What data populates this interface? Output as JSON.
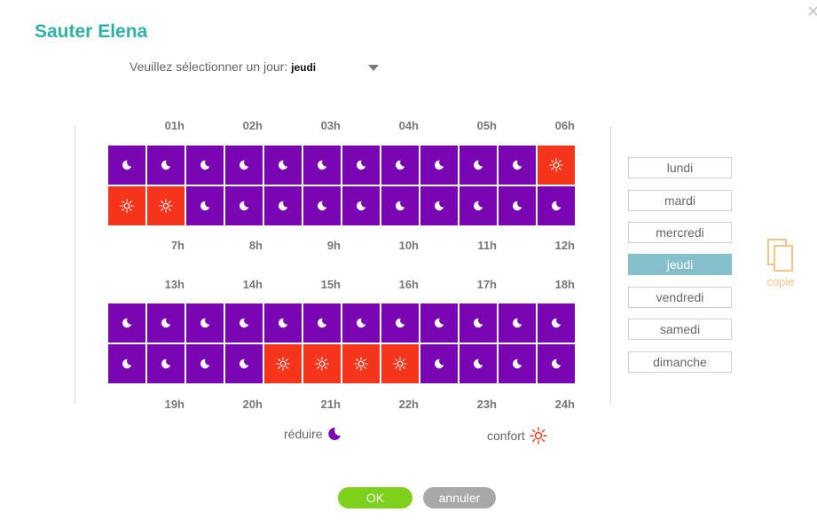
{
  "dialog": {
    "title": "Sauter Elena"
  },
  "day_select": {
    "label": "Veuillez sélectionner un jour:",
    "value": "jeudi"
  },
  "hour_labels": {
    "top1": [
      "01h",
      "02h",
      "03h",
      "04h",
      "05h",
      "06h"
    ],
    "bottom1": [
      "7h",
      "8h",
      "9h",
      "10h",
      "11h",
      "12h"
    ],
    "top2": [
      "13h",
      "14h",
      "15h",
      "16h",
      "17h",
      "18h"
    ],
    "bottom2": [
      "19h",
      "20h",
      "21h",
      "22h",
      "23h",
      "24h"
    ]
  },
  "schedule": {
    "block1": [
      [
        "reduce",
        "reduce",
        "reduce",
        "reduce",
        "reduce",
        "reduce",
        "reduce",
        "reduce",
        "reduce",
        "reduce",
        "reduce",
        "comfort"
      ],
      [
        "comfort",
        "comfort",
        "reduce",
        "reduce",
        "reduce",
        "reduce",
        "reduce",
        "reduce",
        "reduce",
        "reduce",
        "reduce",
        "reduce"
      ]
    ],
    "block2": [
      [
        "reduce",
        "reduce",
        "reduce",
        "reduce",
        "reduce",
        "reduce",
        "reduce",
        "reduce",
        "reduce",
        "reduce",
        "reduce",
        "reduce"
      ],
      [
        "reduce",
        "reduce",
        "reduce",
        "reduce",
        "comfort",
        "comfort",
        "comfort",
        "comfort",
        "reduce",
        "reduce",
        "reduce",
        "reduce"
      ]
    ]
  },
  "days": [
    "lundi",
    "mardi",
    "mercredi",
    "jeudi",
    "vendredi",
    "samedi",
    "dimanche"
  ],
  "active_day": "jeudi",
  "copy": {
    "label": "copie",
    "icon": "copy-icon"
  },
  "legend": {
    "reduce": {
      "label": "réduire",
      "icon": "moon-icon"
    },
    "comfort": {
      "label": "confort",
      "icon": "sun-icon"
    }
  },
  "buttons": {
    "ok": "OK",
    "cancel": "annuler"
  },
  "colors": {
    "title": "#2cb3a8",
    "reduce": "#7a05b2",
    "comfort": "#f5341c",
    "active_day": "#85c0cc",
    "ok": "#7ed11b",
    "cancel": "#a8a8a8",
    "copy": "#f8c483"
  }
}
